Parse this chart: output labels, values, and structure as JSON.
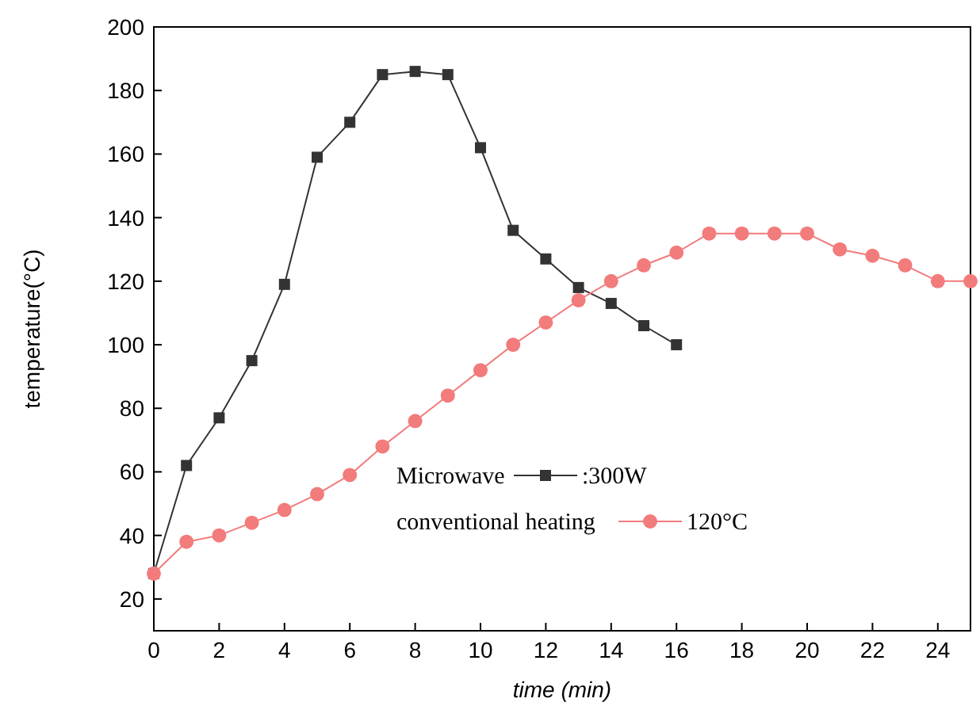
{
  "chart_data": {
    "type": "line",
    "xlabel": "time (min)",
    "ylabel": "temperature(°C)",
    "xlim": [
      0,
      25
    ],
    "ylim": [
      10,
      200
    ],
    "xticks": [
      0,
      2,
      4,
      6,
      8,
      10,
      12,
      14,
      16,
      18,
      20,
      22,
      24
    ],
    "yticks": [
      20,
      40,
      60,
      80,
      100,
      120,
      140,
      160,
      180,
      200
    ],
    "legend": "bottom right",
    "grid": false,
    "annotations": [
      ":300W",
      "120°C"
    ],
    "series": [
      {
        "name": "Microwave",
        "color": "#333333",
        "marker": "square",
        "x": [
          0,
          1,
          2,
          3,
          4,
          5,
          6,
          7,
          8,
          9,
          10,
          11,
          12,
          13,
          14,
          15,
          16
        ],
        "values": [
          28,
          62,
          77,
          95,
          119,
          159,
          170,
          185,
          186,
          185,
          162,
          136,
          127,
          118,
          113,
          106,
          100
        ]
      },
      {
        "name": "conventional heating",
        "color": "#f27b7b",
        "marker": "circle",
        "x": [
          0,
          1,
          2,
          3,
          4,
          5,
          6,
          7,
          8,
          9,
          10,
          11,
          12,
          13,
          14,
          15,
          16,
          17,
          18,
          19,
          20,
          21,
          22,
          23,
          24,
          25
        ],
        "values": [
          28,
          38,
          40,
          44,
          48,
          53,
          59,
          68,
          76,
          84,
          92,
          100,
          107,
          114,
          120,
          125,
          129,
          135,
          135,
          135,
          135,
          130,
          128,
          125,
          120,
          120
        ]
      }
    ]
  }
}
